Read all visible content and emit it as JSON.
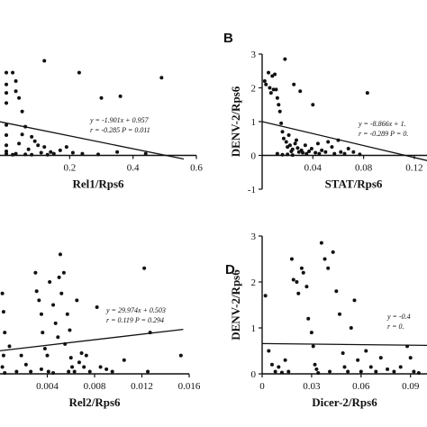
{
  "chart_data": [
    {
      "type": "scatter",
      "panel": "",
      "xlabel": "Rel1/Rps6",
      "ylabel": "",
      "xlim": [
        -0.02,
        0.6
      ],
      "ylim": [
        -1,
        3
      ],
      "xticks": [
        0.2,
        0.4,
        0.6
      ],
      "yticks": [],
      "regression": {
        "slope": -1.901,
        "intercept": 0.957,
        "x_range": [
          -0.02,
          0.56
        ]
      },
      "annotation": [
        "y = -1.901x + 0.957",
        "r = -0.285  P = 0.011"
      ],
      "points": [
        [
          0.0,
          2.45
        ],
        [
          0.0,
          2.1
        ],
        [
          0.0,
          1.85
        ],
        [
          0.0,
          1.55
        ],
        [
          0.0,
          0.9
        ],
        [
          0.0,
          0.6
        ],
        [
          0.0,
          0.3
        ],
        [
          0.0,
          0.12
        ],
        [
          0.0,
          0.05
        ],
        [
          0.02,
          2.45
        ],
        [
          0.03,
          2.2
        ],
        [
          0.03,
          1.9
        ],
        [
          0.04,
          1.7
        ],
        [
          0.05,
          1.3
        ],
        [
          0.06,
          0.85
        ],
        [
          0.05,
          0.62
        ],
        [
          0.04,
          0.35
        ],
        [
          0.07,
          0.18
        ],
        [
          0.08,
          0.55
        ],
        [
          0.09,
          0.42
        ],
        [
          0.1,
          0.3
        ],
        [
          0.12,
          0.25
        ],
        [
          0.11,
          0.08
        ],
        [
          0.15,
          0.05
        ],
        [
          0.13,
          0.02
        ],
        [
          0.17,
          0.15
        ],
        [
          0.19,
          0.25
        ],
        [
          0.21,
          0.08
        ],
        [
          0.24,
          0.05
        ],
        [
          0.14,
          0.1
        ],
        [
          0.03,
          0.05
        ],
        [
          0.06,
          0.03
        ],
        [
          0.02,
          0.02
        ],
        [
          0.08,
          0.02
        ],
        [
          0.35,
          0.1
        ],
        [
          0.44,
          0.05
        ],
        [
          0.12,
          2.8
        ],
        [
          0.23,
          2.45
        ],
        [
          0.3,
          1.7
        ],
        [
          0.36,
          1.75
        ],
        [
          0.49,
          2.3
        ],
        [
          0.29,
          0.03
        ]
      ]
    },
    {
      "type": "scatter",
      "panel": "B",
      "xlabel": "STAT/Rps6",
      "ylabel": "DENV-2/Rps6",
      "xlim": [
        0.0,
        0.13
      ],
      "ylim": [
        -1,
        3
      ],
      "xticks": [
        0.04,
        0.08,
        0.12
      ],
      "yticks": [
        -1,
        0,
        1,
        2,
        3
      ],
      "regression": {
        "slope": -8.866,
        "intercept": 1.0,
        "x_range": [
          0.0,
          0.13
        ]
      },
      "annotation": [
        "y = -8.866x + 1.",
        "r = -0.289  P = 0."
      ],
      "points": [
        [
          0.002,
          2.2
        ],
        [
          0.003,
          2.1
        ],
        [
          0.005,
          2.45
        ],
        [
          0.006,
          2.0
        ],
        [
          0.007,
          1.85
        ],
        [
          0.008,
          2.35
        ],
        [
          0.009,
          1.95
        ],
        [
          0.01,
          2.4
        ],
        [
          0.011,
          1.95
        ],
        [
          0.012,
          1.7
        ],
        [
          0.013,
          1.5
        ],
        [
          0.014,
          1.3
        ],
        [
          0.015,
          0.95
        ],
        [
          0.016,
          0.7
        ],
        [
          0.017,
          0.5
        ],
        [
          0.018,
          2.85
        ],
        [
          0.019,
          0.4
        ],
        [
          0.02,
          0.25
        ],
        [
          0.021,
          0.6
        ],
        [
          0.022,
          0.3
        ],
        [
          0.023,
          0.12
        ],
        [
          0.024,
          0.18
        ],
        [
          0.025,
          2.1
        ],
        [
          0.026,
          0.35
        ],
        [
          0.027,
          0.45
        ],
        [
          0.028,
          0.22
        ],
        [
          0.029,
          0.1
        ],
        [
          0.03,
          1.9
        ],
        [
          0.031,
          0.15
        ],
        [
          0.032,
          0.08
        ],
        [
          0.034,
          0.3
        ],
        [
          0.035,
          0.05
        ],
        [
          0.037,
          0.12
        ],
        [
          0.039,
          0.2
        ],
        [
          0.04,
          1.5
        ],
        [
          0.042,
          0.08
        ],
        [
          0.044,
          0.35
        ],
        [
          0.045,
          0.05
        ],
        [
          0.047,
          0.15
        ],
        [
          0.05,
          0.1
        ],
        [
          0.052,
          0.4
        ],
        [
          0.055,
          0.25
        ],
        [
          0.057,
          0.05
        ],
        [
          0.06,
          0.45
        ],
        [
          0.062,
          0.1
        ],
        [
          0.065,
          0.05
        ],
        [
          0.068,
          0.2
        ],
        [
          0.072,
          0.1
        ],
        [
          0.077,
          0.03
        ],
        [
          0.083,
          1.85
        ],
        [
          0.012,
          0.05
        ],
        [
          0.016,
          0.02
        ],
        [
          0.02,
          0.03
        ],
        [
          0.024,
          0.01
        ]
      ]
    },
    {
      "type": "scatter",
      "panel": "",
      "xlabel": "Rel2/Rps6",
      "ylabel": "",
      "xlim": [
        0.0,
        0.016
      ],
      "ylim": [
        0,
        3
      ],
      "xticks": [
        0.004,
        0.008,
        0.012,
        0.016
      ],
      "yticks": [],
      "regression": {
        "slope": 29.974,
        "intercept": 0.503,
        "x_range": [
          0.0,
          0.0155
        ]
      },
      "annotation": [
        "y = 29.974x + 0.503",
        "r = 0.119  P = 0.294"
      ],
      "points": [
        [
          0.0002,
          1.75
        ],
        [
          0.0003,
          1.35
        ],
        [
          0.0004,
          0.9
        ],
        [
          0.0003,
          0.4
        ],
        [
          0.0002,
          0.15
        ],
        [
          0.0004,
          0.02
        ],
        [
          0.0008,
          0.6
        ],
        [
          0.0014,
          0.05
        ],
        [
          0.0018,
          0.4
        ],
        [
          0.0022,
          0.2
        ],
        [
          0.0026,
          0.05
        ],
        [
          0.003,
          2.2
        ],
        [
          0.0031,
          1.8
        ],
        [
          0.0033,
          1.6
        ],
        [
          0.0035,
          1.3
        ],
        [
          0.0036,
          0.9
        ],
        [
          0.0038,
          0.55
        ],
        [
          0.004,
          0.4
        ],
        [
          0.0041,
          0.05
        ],
        [
          0.0042,
          2.0
        ],
        [
          0.0045,
          1.5
        ],
        [
          0.0047,
          1.1
        ],
        [
          0.0049,
          0.8
        ],
        [
          0.005,
          2.1
        ],
        [
          0.0051,
          2.6
        ],
        [
          0.0052,
          1.75
        ],
        [
          0.0054,
          2.2
        ],
        [
          0.0055,
          0.65
        ],
        [
          0.0057,
          1.3
        ],
        [
          0.0059,
          0.95
        ],
        [
          0.006,
          0.35
        ],
        [
          0.0061,
          0.15
        ],
        [
          0.0063,
          0.05
        ],
        [
          0.0065,
          1.6
        ],
        [
          0.0067,
          0.25
        ],
        [
          0.0069,
          0.45
        ],
        [
          0.0071,
          0.15
        ],
        [
          0.0073,
          0.4
        ],
        [
          0.0076,
          0.05
        ],
        [
          0.0082,
          1.45
        ],
        [
          0.009,
          0.1
        ],
        [
          0.0095,
          0.05
        ],
        [
          0.0105,
          0.3
        ],
        [
          0.0122,
          2.3
        ],
        [
          0.0127,
          0.9
        ],
        [
          0.0153,
          0.4
        ],
        [
          0.0125,
          0.05
        ],
        [
          0.0035,
          0.1
        ],
        [
          0.0045,
          0.02
        ],
        [
          0.0058,
          0.05
        ],
        [
          0.0085,
          0.15
        ]
      ]
    },
    {
      "type": "scatter",
      "panel": "D",
      "xlabel": "Dicer-2/Rps6",
      "ylabel": "DENV-2/Rps6",
      "xlim": [
        0.0,
        0.1
      ],
      "ylim": [
        0,
        3
      ],
      "xticks": [
        0.0,
        0.03,
        0.06,
        0.09
      ],
      "yticks": [
        0,
        1,
        2,
        3
      ],
      "regression": {
        "slope": -0.4,
        "intercept": 0.66,
        "x_range": [
          0.0,
          0.1
        ]
      },
      "annotation": [
        "y = -0.4",
        "r = 0."
      ],
      "points": [
        [
          0.002,
          1.7
        ],
        [
          0.004,
          0.5
        ],
        [
          0.006,
          0.2
        ],
        [
          0.008,
          0.05
        ],
        [
          0.01,
          0.15
        ],
        [
          0.012,
          0.03
        ],
        [
          0.014,
          0.3
        ],
        [
          0.016,
          0.05
        ],
        [
          0.018,
          2.5
        ],
        [
          0.019,
          2.05
        ],
        [
          0.021,
          2.0
        ],
        [
          0.022,
          1.75
        ],
        [
          0.024,
          2.3
        ],
        [
          0.025,
          2.2
        ],
        [
          0.027,
          1.9
        ],
        [
          0.028,
          1.2
        ],
        [
          0.03,
          0.9
        ],
        [
          0.031,
          0.6
        ],
        [
          0.032,
          0.2
        ],
        [
          0.033,
          0.1
        ],
        [
          0.034,
          0.02
        ],
        [
          0.036,
          2.85
        ],
        [
          0.038,
          2.5
        ],
        [
          0.04,
          2.3
        ],
        [
          0.041,
          0.05
        ],
        [
          0.043,
          2.65
        ],
        [
          0.045,
          1.8
        ],
        [
          0.047,
          1.3
        ],
        [
          0.049,
          0.45
        ],
        [
          0.05,
          0.15
        ],
        [
          0.052,
          0.05
        ],
        [
          0.054,
          1.0
        ],
        [
          0.056,
          1.6
        ],
        [
          0.058,
          0.3
        ],
        [
          0.06,
          0.05
        ],
        [
          0.063,
          0.5
        ],
        [
          0.066,
          0.15
        ],
        [
          0.069,
          0.05
        ],
        [
          0.072,
          0.35
        ],
        [
          0.076,
          0.1
        ],
        [
          0.08,
          0.05
        ],
        [
          0.084,
          0.15
        ],
        [
          0.088,
          0.6
        ],
        [
          0.09,
          0.35
        ],
        [
          0.092,
          0.05
        ],
        [
          0.095,
          0.02
        ]
      ]
    }
  ]
}
